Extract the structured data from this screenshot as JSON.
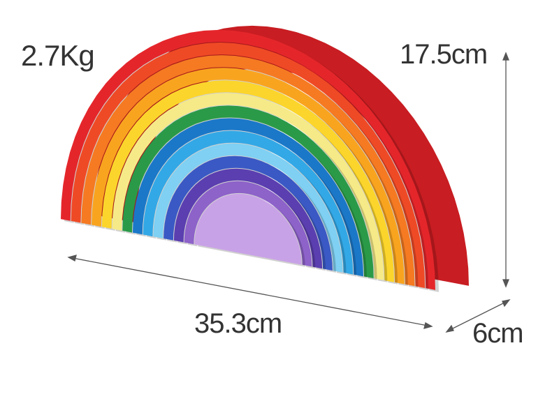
{
  "labels": {
    "weight": "2.7Kg",
    "height": "17.5cm",
    "width": "35.3cm",
    "depth": "6cm"
  },
  "arch_colors": [
    "#e4262b",
    "#ef4a26",
    "#f57a22",
    "#f9a41f",
    "#fbd52b",
    "#f6ea88",
    "#2a9a48",
    "#1b78c8",
    "#33a8e6",
    "#7fd0f2",
    "#3a59c4",
    "#5b3fb0",
    "#8d62c9",
    "#c8a2e6"
  ]
}
